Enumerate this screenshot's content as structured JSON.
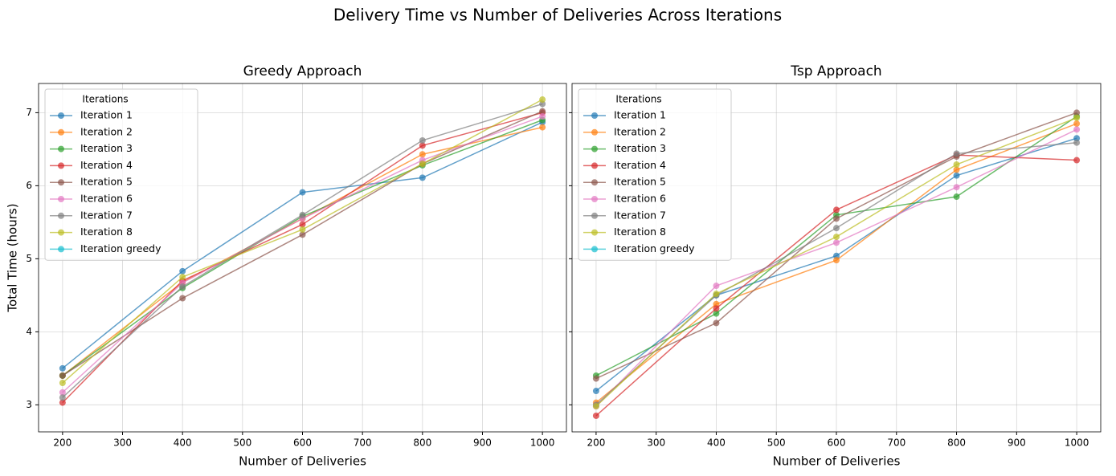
{
  "title": "Delivery Time vs Number of Deliveries Across Iterations",
  "chart_data": [
    {
      "type": "line",
      "title": "Greedy Approach",
      "xlabel": "Number of Deliveries",
      "ylabel": "Total Time (hours)",
      "x": [
        200,
        400,
        600,
        800,
        1000
      ],
      "xlim": [
        160,
        1040
      ],
      "xticks": [
        200,
        300,
        400,
        500,
        600,
        700,
        800,
        900,
        1000
      ],
      "ylim": [
        2.63,
        7.4
      ],
      "yticks": [
        3,
        4,
        5,
        6,
        7
      ],
      "show_ytick_labels": true,
      "grid": true,
      "legend_title": "Iterations",
      "legend": "upper left",
      "series": [
        {
          "name": "Iteration 1",
          "color": "#1f77b4",
          "values": [
            3.5,
            4.83,
            5.91,
            6.11,
            6.87
          ]
        },
        {
          "name": "Iteration 2",
          "color": "#ff7f0e",
          "values": [
            3.4,
            4.68,
            5.55,
            6.43,
            6.8
          ]
        },
        {
          "name": "Iteration 3",
          "color": "#2ca02c",
          "values": [
            3.4,
            4.6,
            5.58,
            6.28,
            6.9
          ]
        },
        {
          "name": "Iteration 4",
          "color": "#d62728",
          "values": [
            3.03,
            4.7,
            5.47,
            6.55,
            7.0
          ]
        },
        {
          "name": "Iteration 5",
          "color": "#8c564b",
          "values": [
            3.4,
            4.46,
            5.33,
            6.3,
            7.02
          ]
        },
        {
          "name": "Iteration 6",
          "color": "#e377c2",
          "values": [
            3.17,
            4.67,
            5.55,
            6.35,
            6.95
          ]
        },
        {
          "name": "Iteration 7",
          "color": "#7f7f7f",
          "values": [
            3.1,
            4.62,
            5.6,
            6.62,
            7.12
          ]
        },
        {
          "name": "Iteration 8",
          "color": "#bcbd22",
          "values": [
            3.3,
            4.75,
            5.4,
            6.3,
            7.18
          ]
        },
        {
          "name": "Iteration greedy",
          "color": "#17becf",
          "values": [
            null,
            null,
            null,
            null,
            null
          ]
        }
      ]
    },
    {
      "type": "line",
      "title": "Tsp Approach",
      "xlabel": "Number of Deliveries",
      "x": [
        200,
        400,
        600,
        800,
        1000
      ],
      "xlim": [
        160,
        1040
      ],
      "xticks": [
        200,
        300,
        400,
        500,
        600,
        700,
        800,
        900,
        1000
      ],
      "ylim": [
        2.63,
        7.4
      ],
      "yticks": [
        3,
        4,
        5,
        6,
        7
      ],
      "show_ytick_labels": false,
      "grid": true,
      "legend_title": "Iterations",
      "legend": "upper left",
      "series": [
        {
          "name": "Iteration 1",
          "color": "#1f77b4",
          "values": [
            3.19,
            4.5,
            5.04,
            6.14,
            6.65
          ]
        },
        {
          "name": "Iteration 2",
          "color": "#ff7f0e",
          "values": [
            3.03,
            4.38,
            4.98,
            6.22,
            6.85
          ]
        },
        {
          "name": "Iteration 3",
          "color": "#2ca02c",
          "values": [
            3.4,
            4.25,
            5.6,
            5.85,
            6.95
          ]
        },
        {
          "name": "Iteration 4",
          "color": "#d62728",
          "values": [
            2.85,
            4.32,
            5.67,
            6.42,
            6.35
          ]
        },
        {
          "name": "Iteration 5",
          "color": "#8c564b",
          "values": [
            3.36,
            4.12,
            5.55,
            6.4,
            7.0
          ]
        },
        {
          "name": "Iteration 6",
          "color": "#e377c2",
          "values": [
            2.98,
            4.63,
            5.22,
            5.98,
            6.77
          ]
        },
        {
          "name": "Iteration 7",
          "color": "#7f7f7f",
          "values": [
            3.0,
            4.5,
            5.42,
            6.44,
            6.59
          ]
        },
        {
          "name": "Iteration 8",
          "color": "#bcbd22",
          "values": [
            2.98,
            4.52,
            5.3,
            6.29,
            6.93
          ]
        },
        {
          "name": "Iteration greedy",
          "color": "#17becf",
          "values": [
            null,
            null,
            null,
            null,
            null
          ]
        }
      ]
    }
  ]
}
